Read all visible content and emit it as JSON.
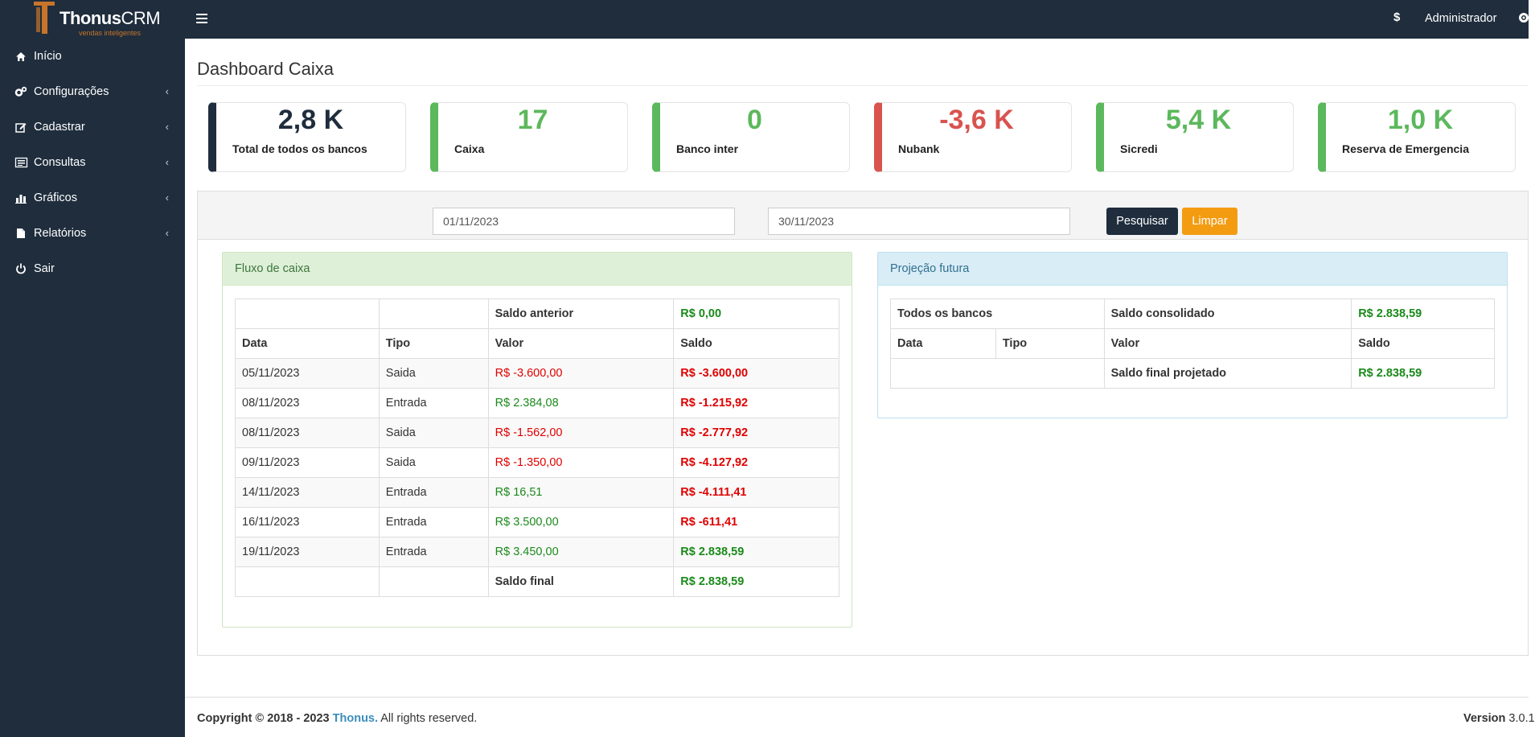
{
  "brand": {
    "name_a": "Thonus",
    "name_b": "CRM",
    "tagline": "vendas inteligentes"
  },
  "sidebar": {
    "items": [
      {
        "label": "Início",
        "icon": "home-icon",
        "has_submenu": false
      },
      {
        "label": "Configurações",
        "icon": "cogs-icon",
        "has_submenu": true
      },
      {
        "label": "Cadastrar",
        "icon": "edit-icon",
        "has_submenu": true
      },
      {
        "label": "Consultas",
        "icon": "list-icon",
        "has_submenu": true
      },
      {
        "label": "Gráficos",
        "icon": "bar-chart-icon",
        "has_submenu": true
      },
      {
        "label": "Relatórios",
        "icon": "file-icon",
        "has_submenu": true
      },
      {
        "label": "Sair",
        "icon": "power-icon",
        "has_submenu": false
      }
    ]
  },
  "topbar": {
    "currency_symbol": "$",
    "user": "Administrador"
  },
  "page": {
    "title": "Dashboard Caixa"
  },
  "cards": [
    {
      "value": "2,8 K",
      "label": "Total de todos os bancos",
      "color": "#1f2d3d"
    },
    {
      "value": "17",
      "label": "Caixa",
      "color": "#5cb85c"
    },
    {
      "value": "0",
      "label": "Banco inter",
      "color": "#5cb85c"
    },
    {
      "value": "-3,6 K",
      "label": "Nubank",
      "color": "#d9534f"
    },
    {
      "value": "5,4 K",
      "label": "Sicredi",
      "color": "#5cb85c"
    },
    {
      "value": "1,0 K",
      "label": "Reserva de Emergencia",
      "color": "#5cb85c"
    }
  ],
  "filter": {
    "date_start": "01/11/2023",
    "date_end": "30/11/2023",
    "search_label": "Pesquisar",
    "clear_label": "Limpar"
  },
  "cashflow": {
    "title": "Fluxo de caixa",
    "prev_balance_label": "Saldo anterior",
    "prev_balance_value": "R$ 0,00",
    "headers": [
      "Data",
      "Tipo",
      "Valor",
      "Saldo"
    ],
    "rows": [
      {
        "date": "05/11/2023",
        "type": "Saida",
        "value": "R$ -3.600,00",
        "balance": "R$ -3.600,00"
      },
      {
        "date": "08/11/2023",
        "type": "Entrada",
        "value": "R$ 2.384,08",
        "balance": "R$ -1.215,92"
      },
      {
        "date": "08/11/2023",
        "type": "Saida",
        "value": "R$ -1.562,00",
        "balance": "R$ -2.777,92"
      },
      {
        "date": "09/11/2023",
        "type": "Saida",
        "value": "R$ -1.350,00",
        "balance": "R$ -4.127,92"
      },
      {
        "date": "14/11/2023",
        "type": "Entrada",
        "value": "R$ 16,51",
        "balance": "R$ -4.111,41"
      },
      {
        "date": "16/11/2023",
        "type": "Entrada",
        "value": "R$ 3.500,00",
        "balance": "R$ -611,41"
      },
      {
        "date": "19/11/2023",
        "type": "Entrada",
        "value": "R$ 3.450,00",
        "balance": "R$ 2.838,59"
      }
    ],
    "final_label": "Saldo final",
    "final_value": "R$ 2.838,59"
  },
  "projection": {
    "title": "Projeção futura",
    "all_banks_label": "Todos os bancos",
    "consolidated_label": "Saldo consolidado",
    "consolidated_value": "R$ 2.838,59",
    "headers": [
      "Data",
      "Tipo",
      "Valor",
      "Saldo"
    ],
    "final_label": "Saldo final projetado",
    "final_value": "R$ 2.838,59"
  },
  "footer": {
    "copyright": "Copyright © 2018 - 2023",
    "company": "Thonus.",
    "rights": "All rights reserved.",
    "version_label": "Version",
    "version_value": "3.0.1"
  }
}
